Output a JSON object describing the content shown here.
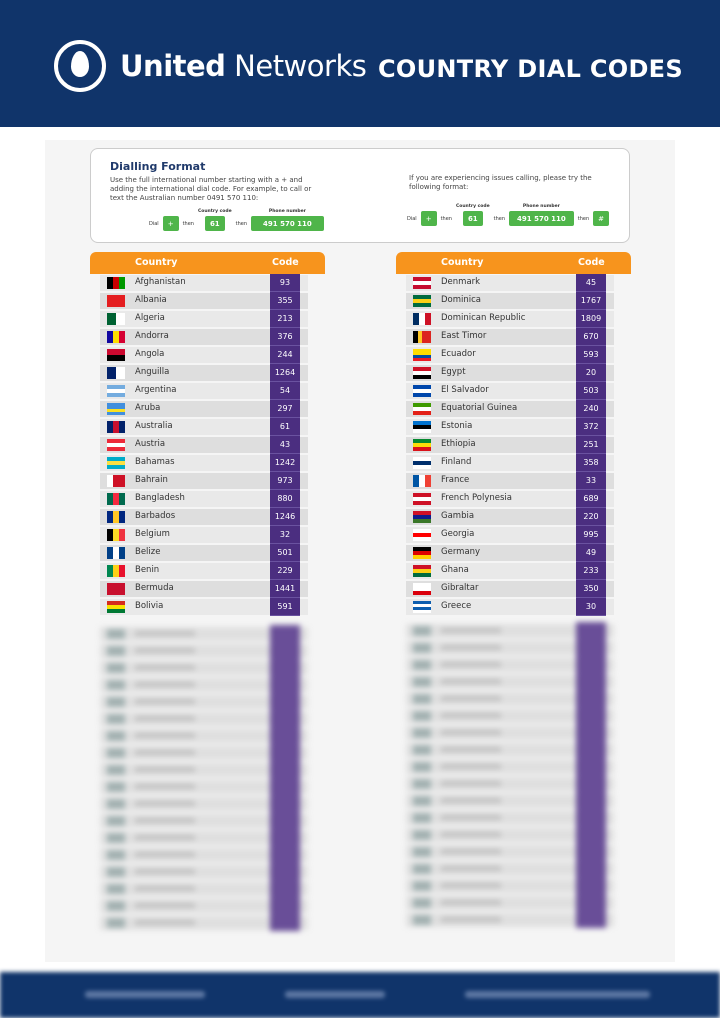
{
  "header": {
    "brand_bold": "United",
    "brand_light": "Networks",
    "title": "COUNTRY DIAL CODES",
    "colors": {
      "navy": "#10346a",
      "orange": "#f7941d",
      "purple": "#4b2e80",
      "green": "#4fb54a"
    }
  },
  "dialling": {
    "title": "Dialling Format",
    "left_text": "Use the full international number starting with a + and adding the international dial code. For example, to call or text the Australian number 0491 570 110:",
    "right_text": "If you are experiencing issues calling, please try the following format:",
    "dial": "Dial",
    "then": "then",
    "country_code_caption": "Country code",
    "phone_number_caption": "Phone number",
    "plus": "+",
    "country_code": "61",
    "phone_number": "491 570 110",
    "hash": "#"
  },
  "table_headers": {
    "country": "Country",
    "code": "Code"
  },
  "left_rows": [
    {
      "name": "Afghanistan",
      "code": "93",
      "flag": [
        "#000",
        "#c00",
        "#090"
      ],
      "o": "v"
    },
    {
      "name": "Albania",
      "code": "355",
      "flag": [
        "#e41e20"
      ],
      "o": "v"
    },
    {
      "name": "Algeria",
      "code": "213",
      "flag": [
        "#006233",
        "#fff"
      ],
      "o": "v"
    },
    {
      "name": "Andorra",
      "code": "376",
      "flag": [
        "#10069f",
        "#fedd00",
        "#d50032"
      ],
      "o": "v"
    },
    {
      "name": "Angola",
      "code": "244",
      "flag": [
        "#cc092f",
        "#000"
      ],
      "o": "h"
    },
    {
      "name": "Anguilla",
      "code": "1264",
      "flag": [
        "#012169",
        "#fff"
      ],
      "o": "v"
    },
    {
      "name": "Argentina",
      "code": "54",
      "flag": [
        "#74acdf",
        "#fff",
        "#74acdf"
      ],
      "o": "h"
    },
    {
      "name": "Aruba",
      "code": "297",
      "flag": [
        "#418fde",
        "#418fde",
        "#fbe122",
        "#418fde"
      ],
      "o": "h"
    },
    {
      "name": "Australia",
      "code": "61",
      "flag": [
        "#012169",
        "#c8102e",
        "#012169"
      ],
      "o": "v"
    },
    {
      "name": "Austria",
      "code": "43",
      "flag": [
        "#ed2939",
        "#fff",
        "#ed2939"
      ],
      "o": "h"
    },
    {
      "name": "Bahamas",
      "code": "1242",
      "flag": [
        "#00abc9",
        "#fae042",
        "#00abc9"
      ],
      "o": "h"
    },
    {
      "name": "Bahrain",
      "code": "973",
      "flag": [
        "#fff",
        "#ce1126",
        "#ce1126"
      ],
      "o": "v"
    },
    {
      "name": "Bangladesh",
      "code": "880",
      "flag": [
        "#006a4e",
        "#f42a41",
        "#006a4e"
      ],
      "o": "v"
    },
    {
      "name": "Barbados",
      "code": "1246",
      "flag": [
        "#00267f",
        "#ffc726",
        "#00267f"
      ],
      "o": "v"
    },
    {
      "name": "Belgium",
      "code": "32",
      "flag": [
        "#000",
        "#fdda24",
        "#ef3340"
      ],
      "o": "v"
    },
    {
      "name": "Belize",
      "code": "501",
      "flag": [
        "#003f87",
        "#fff",
        "#003f87"
      ],
      "o": "v"
    },
    {
      "name": "Benin",
      "code": "229",
      "flag": [
        "#008751",
        "#fcd116",
        "#e8112d"
      ],
      "o": "v"
    },
    {
      "name": "Bermuda",
      "code": "1441",
      "flag": [
        "#c8102e"
      ],
      "o": "v"
    },
    {
      "name": "Bolivia",
      "code": "591",
      "flag": [
        "#d52b1e",
        "#f9e300",
        "#007934"
      ],
      "o": "h"
    }
  ],
  "right_rows": [
    {
      "name": "Denmark",
      "code": "45",
      "flag": [
        "#c60c30",
        "#fff",
        "#c60c30"
      ],
      "o": "h"
    },
    {
      "name": "Dominica",
      "code": "1767",
      "flag": [
        "#006b3f",
        "#fcd116",
        "#006b3f"
      ],
      "o": "h"
    },
    {
      "name": "Dominican Republic",
      "code": "1809",
      "flag": [
        "#002d62",
        "#fff",
        "#ce1126"
      ],
      "o": "v"
    },
    {
      "name": "East Timor",
      "code": "670",
      "flag": [
        "#000",
        "#ffc726",
        "#dc241f",
        "#dc241f"
      ],
      "o": "v"
    },
    {
      "name": "Ecuador",
      "code": "593",
      "flag": [
        "#ffdd00",
        "#ffdd00",
        "#034ea2",
        "#ed1c24"
      ],
      "o": "h"
    },
    {
      "name": "Egypt",
      "code": "20",
      "flag": [
        "#ce1126",
        "#fff",
        "#000"
      ],
      "o": "h"
    },
    {
      "name": "El Salvador",
      "code": "503",
      "flag": [
        "#0047ab",
        "#fff",
        "#0047ab"
      ],
      "o": "h"
    },
    {
      "name": "Equatorial Guinea",
      "code": "240",
      "flag": [
        "#3e9a00",
        "#fff",
        "#e32118"
      ],
      "o": "h"
    },
    {
      "name": "Estonia",
      "code": "372",
      "flag": [
        "#0072ce",
        "#000",
        "#fff"
      ],
      "o": "h"
    },
    {
      "name": "Ethiopia",
      "code": "251",
      "flag": [
        "#078930",
        "#fcdd09",
        "#da121a"
      ],
      "o": "h"
    },
    {
      "name": "Finland",
      "code": "358",
      "flag": [
        "#fff",
        "#002f6c",
        "#fff"
      ],
      "o": "h"
    },
    {
      "name": "France",
      "code": "33",
      "flag": [
        "#0055a4",
        "#fff",
        "#ef4135"
      ],
      "o": "v"
    },
    {
      "name": "French Polynesia",
      "code": "689",
      "flag": [
        "#ce1126",
        "#fff",
        "#ce1126"
      ],
      "o": "h"
    },
    {
      "name": "Gambia",
      "code": "220",
      "flag": [
        "#ce1126",
        "#0c1c8c",
        "#3a7728"
      ],
      "o": "h"
    },
    {
      "name": "Georgia",
      "code": "995",
      "flag": [
        "#fff",
        "#ff0000",
        "#fff"
      ],
      "o": "h"
    },
    {
      "name": "Germany",
      "code": "49",
      "flag": [
        "#000",
        "#dd0000",
        "#ffce00"
      ],
      "o": "h"
    },
    {
      "name": "Ghana",
      "code": "233",
      "flag": [
        "#ce1126",
        "#fcd116",
        "#006b3f"
      ],
      "o": "h"
    },
    {
      "name": "Gibraltar",
      "code": "350",
      "flag": [
        "#fff",
        "#fff",
        "#da000c"
      ],
      "o": "h"
    },
    {
      "name": "Greece",
      "code": "30",
      "flag": [
        "#0d5eaf",
        "#fff",
        "#0d5eaf",
        "#fff"
      ],
      "o": "h"
    }
  ]
}
